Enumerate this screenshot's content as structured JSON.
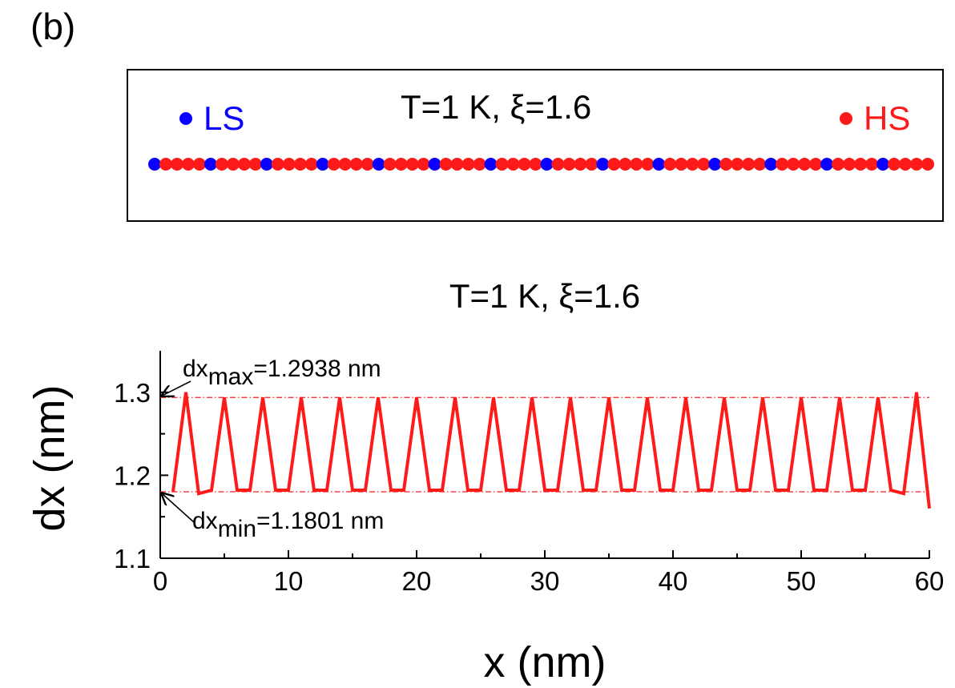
{
  "panel_label": "(b)",
  "chain_panel": {
    "title": "T=1 K, ξ=1.6",
    "legend": [
      {
        "label": "LS",
        "color": "#0a00ff"
      },
      {
        "label": "HS",
        "color": "#ff1a1a"
      }
    ],
    "sequence": "LHHHHLHHHHLHHHHLHHHHLHHHHLHHHHLHHHHLHHHHLHHHHLHHHHLHHHHLHHHHLHHHHLHHHH",
    "colors": {
      "LS": "#0a00ff",
      "HS": "#ff1a1a"
    }
  },
  "chart_data": {
    "type": "line",
    "title": "T=1 K, ξ=1.6",
    "xlabel": "x (nm)",
    "ylabel": "dx (nm)",
    "xlim": [
      0,
      60
    ],
    "ylim": [
      1.1,
      1.35
    ],
    "xticks": [
      0,
      10,
      20,
      30,
      40,
      50,
      60
    ],
    "yticks": [
      1.1,
      1.2,
      1.3
    ],
    "series": [
      {
        "color": "#ff1a1a",
        "x": [
          1,
          2,
          3,
          4,
          5,
          6,
          7,
          8,
          9,
          10,
          11,
          12,
          13,
          14,
          15,
          16,
          17,
          18,
          19,
          20,
          21,
          22,
          23,
          24,
          25,
          26,
          27,
          28,
          29,
          30,
          31,
          32,
          33,
          34,
          35,
          36,
          37,
          38,
          39,
          40,
          41,
          42,
          43,
          44,
          45,
          46,
          47,
          48,
          49,
          50,
          51,
          52,
          53,
          54,
          55,
          56,
          57,
          58,
          59,
          60
        ],
        "y": [
          1.18,
          1.3,
          1.178,
          1.182,
          1.2938,
          1.182,
          1.182,
          1.2938,
          1.182,
          1.182,
          1.2938,
          1.182,
          1.182,
          1.2938,
          1.182,
          1.182,
          1.2938,
          1.182,
          1.182,
          1.2938,
          1.182,
          1.182,
          1.2938,
          1.182,
          1.182,
          1.2938,
          1.182,
          1.182,
          1.2938,
          1.182,
          1.182,
          1.2938,
          1.182,
          1.182,
          1.2938,
          1.182,
          1.182,
          1.2938,
          1.182,
          1.182,
          1.2938,
          1.182,
          1.182,
          1.2938,
          1.182,
          1.182,
          1.2938,
          1.182,
          1.182,
          1.2938,
          1.182,
          1.182,
          1.2938,
          1.182,
          1.182,
          1.2938,
          1.182,
          1.178,
          1.3,
          1.16
        ]
      }
    ],
    "reference_lines": [
      1.2938,
      1.1801
    ],
    "annotations": [
      {
        "base": "dx",
        "sub": "max",
        "rest": "=1.2938 nm",
        "target_y": 1.2938
      },
      {
        "base": "dx",
        "sub": "min",
        "rest": "=1.1801 nm",
        "target_y": 1.1801
      }
    ]
  }
}
